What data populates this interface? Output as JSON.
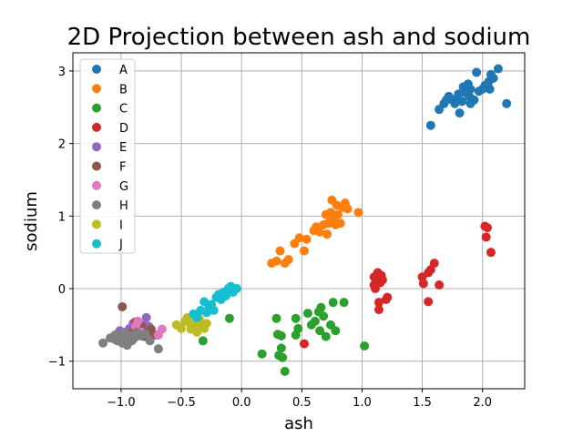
{
  "chart_data": {
    "type": "scatter",
    "title": "2D Projection between ash and sodium",
    "xlabel": "ash",
    "ylabel": "sodium",
    "xlim": [
      -1.4,
      2.35
    ],
    "ylim": [
      -1.38,
      3.25
    ],
    "xticks": [
      -1.0,
      -0.5,
      0.0,
      0.5,
      1.0,
      1.5,
      2.0
    ],
    "xtick_labels": [
      "−1.0",
      "−0.5",
      "0.0",
      "0.5",
      "1.0",
      "1.5",
      "2.0"
    ],
    "yticks": [
      -1,
      0,
      1,
      2,
      3
    ],
    "ytick_labels": [
      "−1",
      "0",
      "1",
      "2",
      "3"
    ],
    "grid": true,
    "legend_position": "top-left",
    "series": [
      {
        "name": "A",
        "color": "#1f77b4",
        "points": [
          [
            1.57,
            2.25
          ],
          [
            1.64,
            2.47
          ],
          [
            1.68,
            2.55
          ],
          [
            1.7,
            2.6
          ],
          [
            1.72,
            2.65
          ],
          [
            1.75,
            2.6
          ],
          [
            1.77,
            2.55
          ],
          [
            1.79,
            2.62
          ],
          [
            1.8,
            2.68
          ],
          [
            1.81,
            2.42
          ],
          [
            1.83,
            2.58
          ],
          [
            1.84,
            2.78
          ],
          [
            1.86,
            2.7
          ],
          [
            1.88,
            2.82
          ],
          [
            1.89,
            2.65
          ],
          [
            1.9,
            2.75
          ],
          [
            1.9,
            2.55
          ],
          [
            1.93,
            2.6
          ],
          [
            1.95,
            2.98
          ],
          [
            1.97,
            2.72
          ],
          [
            2.0,
            2.75
          ],
          [
            2.02,
            2.8
          ],
          [
            2.05,
            2.85
          ],
          [
            2.06,
            2.75
          ],
          [
            2.07,
            2.95
          ],
          [
            2.09,
            2.9
          ],
          [
            2.13,
            3.03
          ],
          [
            2.2,
            2.55
          ]
        ]
      },
      {
        "name": "B",
        "color": "#ff7f0e",
        "points": [
          [
            0.25,
            0.35
          ],
          [
            0.29,
            0.38
          ],
          [
            0.32,
            0.52
          ],
          [
            0.36,
            0.35
          ],
          [
            0.39,
            0.4
          ],
          [
            0.44,
            0.62
          ],
          [
            0.48,
            0.7
          ],
          [
            0.52,
            0.52
          ],
          [
            0.54,
            0.68
          ],
          [
            0.6,
            0.8
          ],
          [
            0.62,
            0.85
          ],
          [
            0.65,
            0.78
          ],
          [
            0.68,
            0.88
          ],
          [
            0.7,
            1.02
          ],
          [
            0.71,
            0.75
          ],
          [
            0.72,
            0.9
          ],
          [
            0.74,
            1.05
          ],
          [
            0.75,
            1.22
          ],
          [
            0.76,
            0.95
          ],
          [
            0.78,
            0.88
          ],
          [
            0.79,
            1.15
          ],
          [
            0.8,
            1.02
          ],
          [
            0.82,
            0.9
          ],
          [
            0.84,
            1.12
          ],
          [
            0.86,
            1.18
          ],
          [
            0.88,
            1.1
          ],
          [
            0.97,
            1.05
          ]
        ]
      },
      {
        "name": "C",
        "color": "#2ca02c",
        "points": [
          [
            -0.32,
            -0.72
          ],
          [
            -0.1,
            -0.41
          ],
          [
            0.17,
            -0.9
          ],
          [
            0.29,
            -0.41
          ],
          [
            0.3,
            -0.63
          ],
          [
            0.31,
            -0.92
          ],
          [
            0.33,
            -0.82
          ],
          [
            0.33,
            -0.65
          ],
          [
            0.34,
            -0.95
          ],
          [
            0.36,
            -1.14
          ],
          [
            0.45,
            -0.41
          ],
          [
            0.45,
            -0.64
          ],
          [
            0.47,
            -0.55
          ],
          [
            0.55,
            -0.34
          ],
          [
            0.58,
            -0.5
          ],
          [
            0.61,
            -0.45
          ],
          [
            0.64,
            -0.32
          ],
          [
            0.65,
            -0.58
          ],
          [
            0.66,
            -0.26
          ],
          [
            0.68,
            -0.38
          ],
          [
            0.7,
            -0.66
          ],
          [
            0.74,
            -0.5
          ],
          [
            0.76,
            -0.19
          ],
          [
            0.78,
            -0.58
          ],
          [
            0.85,
            -0.19
          ],
          [
            1.02,
            -0.79
          ]
        ]
      },
      {
        "name": "D",
        "color": "#d62728",
        "points": [
          [
            0.52,
            -0.76
          ],
          [
            1.1,
            0.16
          ],
          [
            1.1,
            0.05
          ],
          [
            1.11,
            0.0
          ],
          [
            1.12,
            0.1
          ],
          [
            1.13,
            0.22
          ],
          [
            1.14,
            -0.19
          ],
          [
            1.14,
            -0.29
          ],
          [
            1.15,
            0.08
          ],
          [
            1.16,
            0.18
          ],
          [
            1.17,
            0.12
          ],
          [
            1.2,
            -0.15
          ],
          [
            1.21,
            -0.12
          ],
          [
            1.5,
            0.16
          ],
          [
            1.51,
            0.07
          ],
          [
            1.55,
            -0.18
          ],
          [
            1.55,
            0.22
          ],
          [
            1.57,
            0.26
          ],
          [
            1.6,
            0.35
          ],
          [
            1.64,
            0.05
          ],
          [
            2.02,
            0.86
          ],
          [
            2.03,
            0.71
          ],
          [
            2.04,
            0.84
          ],
          [
            2.07,
            0.5
          ]
        ]
      },
      {
        "name": "E",
        "color": "#9467bd",
        "points": [
          [
            -1.05,
            -0.7
          ],
          [
            -1.01,
            -0.58
          ],
          [
            -0.96,
            -0.6
          ],
          [
            -0.93,
            -0.55
          ],
          [
            -0.9,
            -0.48
          ],
          [
            -0.85,
            -0.56
          ],
          [
            -0.81,
            -0.5
          ],
          [
            -0.79,
            -0.4
          ],
          [
            -0.77,
            -0.52
          ],
          [
            -0.7,
            -0.64
          ]
        ]
      },
      {
        "name": "F",
        "color": "#8c564b",
        "points": [
          [
            -0.99,
            -0.25
          ],
          [
            -0.96,
            -0.66
          ],
          [
            -0.92,
            -0.61
          ],
          [
            -0.88,
            -0.46
          ],
          [
            -0.86,
            -0.56
          ],
          [
            -0.83,
            -0.52
          ],
          [
            -0.81,
            -0.66
          ],
          [
            -0.78,
            -0.6
          ],
          [
            -0.75,
            -0.56
          ],
          [
            -0.72,
            -0.64
          ]
        ]
      },
      {
        "name": "G",
        "color": "#e377c2",
        "points": [
          [
            -0.96,
            -0.63
          ],
          [
            -0.93,
            -0.68
          ],
          [
            -0.88,
            -0.52
          ],
          [
            -0.86,
            -0.45
          ],
          [
            -0.83,
            -0.6
          ],
          [
            -0.69,
            -0.64
          ],
          [
            -0.66,
            -0.56
          ]
        ]
      },
      {
        "name": "H",
        "color": "#7f7f7f",
        "points": [
          [
            -1.15,
            -0.75
          ],
          [
            -1.09,
            -0.68
          ],
          [
            -1.05,
            -0.64
          ],
          [
            -1.03,
            -0.72
          ],
          [
            -1.01,
            -0.66
          ],
          [
            -0.99,
            -0.75
          ],
          [
            -0.98,
            -0.62
          ],
          [
            -0.96,
            -0.7
          ],
          [
            -0.95,
            -0.78
          ],
          [
            -0.93,
            -0.64
          ],
          [
            -0.91,
            -0.72
          ],
          [
            -0.89,
            -0.68
          ],
          [
            -0.87,
            -0.6
          ],
          [
            -0.84,
            -0.65
          ],
          [
            -0.8,
            -0.62
          ],
          [
            -0.76,
            -0.72
          ],
          [
            -0.69,
            -0.83
          ]
        ]
      },
      {
        "name": "I",
        "color": "#bcbd22",
        "points": [
          [
            -0.54,
            -0.5
          ],
          [
            -0.5,
            -0.55
          ],
          [
            -0.47,
            -0.45
          ],
          [
            -0.45,
            -0.4
          ],
          [
            -0.43,
            -0.48
          ],
          [
            -0.42,
            -0.56
          ],
          [
            -0.4,
            -0.52
          ],
          [
            -0.38,
            -0.45
          ],
          [
            -0.37,
            -0.6
          ],
          [
            -0.35,
            -0.42
          ],
          [
            -0.33,
            -0.5
          ],
          [
            -0.31,
            -0.55
          ],
          [
            -0.29,
            -0.48
          ]
        ]
      },
      {
        "name": "J",
        "color": "#17becf",
        "points": [
          [
            -0.4,
            -0.35
          ],
          [
            -0.37,
            -0.4
          ],
          [
            -0.34,
            -0.3
          ],
          [
            -0.31,
            -0.18
          ],
          [
            -0.29,
            -0.33
          ],
          [
            -0.27,
            -0.25
          ],
          [
            -0.25,
            -0.22
          ],
          [
            -0.23,
            -0.3
          ],
          [
            -0.21,
            -0.12
          ],
          [
            -0.19,
            -0.08
          ],
          [
            -0.17,
            -0.15
          ],
          [
            -0.15,
            -0.05
          ],
          [
            -0.13,
            -0.1
          ],
          [
            -0.11,
            0.0
          ],
          [
            -0.09,
            0.03
          ],
          [
            -0.07,
            -0.05
          ],
          [
            -0.04,
            0.0
          ]
        ]
      }
    ]
  }
}
